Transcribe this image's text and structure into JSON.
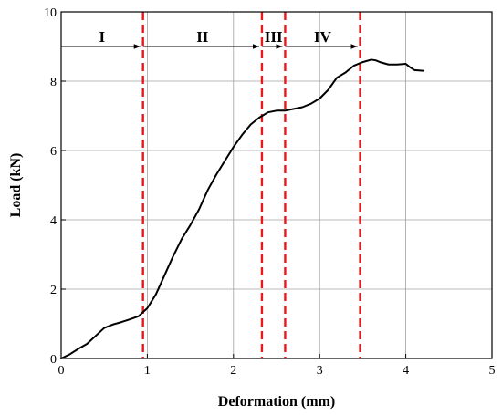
{
  "chart_data": {
    "type": "line",
    "xlabel": "Deformation (mm)",
    "ylabel": "Load (kN)",
    "xlim": [
      0,
      5
    ],
    "ylim": [
      0,
      10
    ],
    "xticks": [
      "0",
      "1",
      "2",
      "3",
      "4",
      "5"
    ],
    "yticks": [
      "0",
      "2",
      "4",
      "6",
      "8",
      "10"
    ],
    "grid": true,
    "series": [
      {
        "x": [
          0,
          0.1,
          0.2,
          0.3,
          0.4,
          0.5,
          0.6,
          0.7,
          0.8,
          0.9,
          1.0,
          1.1,
          1.2,
          1.3,
          1.4,
          1.5,
          1.6,
          1.7,
          1.8,
          1.9,
          2.0,
          2.1,
          2.2,
          2.3,
          2.4,
          2.5,
          2.6,
          2.7,
          2.8,
          2.9,
          3.0,
          3.1,
          3.2,
          3.3,
          3.4,
          3.5,
          3.6,
          3.65,
          3.7,
          3.8,
          3.9,
          4.0,
          4.05,
          4.1,
          4.2
        ],
        "y": [
          0,
          0.12,
          0.28,
          0.42,
          0.65,
          0.88,
          0.98,
          1.05,
          1.13,
          1.22,
          1.45,
          1.85,
          2.4,
          2.95,
          3.45,
          3.85,
          4.3,
          4.85,
          5.3,
          5.7,
          6.1,
          6.45,
          6.75,
          6.95,
          7.1,
          7.15,
          7.15,
          7.2,
          7.25,
          7.35,
          7.5,
          7.75,
          8.1,
          8.25,
          8.45,
          8.55,
          8.62,
          8.6,
          8.55,
          8.48,
          8.48,
          8.5,
          8.4,
          8.32,
          8.3
        ]
      }
    ],
    "stage_boundaries": [
      0.95,
      2.33,
      2.6,
      3.47
    ],
    "stages": [
      {
        "label": "I",
        "from": 0,
        "to": 0.95
      },
      {
        "label": "II",
        "from": 0.95,
        "to": 2.33
      },
      {
        "label": "III",
        "from": 2.33,
        "to": 2.6
      },
      {
        "label": "IV",
        "from": 2.6,
        "to": 3.47
      }
    ],
    "stage_arrow_y": 9.0,
    "colors": {
      "curve": "#000000",
      "boundary": "#e8191c",
      "grid": "#a0a0a0",
      "arrow": "#000000"
    }
  }
}
